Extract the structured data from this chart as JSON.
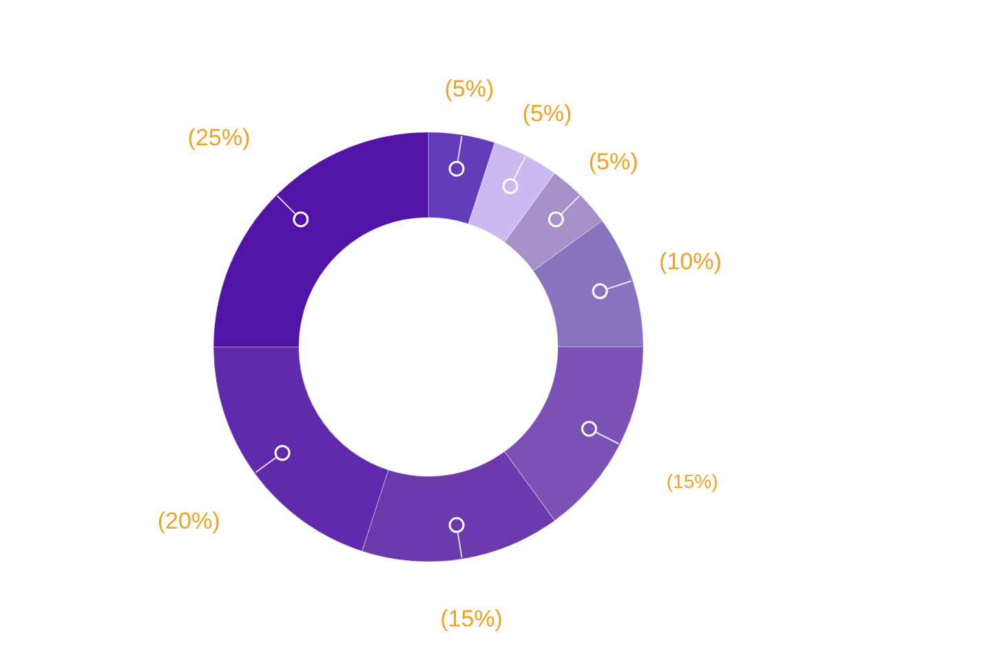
{
  "chart_data": {
    "type": "donut",
    "categories": [
      null,
      null,
      null,
      null,
      null,
      null,
      null,
      null
    ],
    "values": [
      5,
      5,
      5,
      10,
      15,
      15,
      20,
      25
    ],
    "colors": [
      "#643bb9",
      "#cbb9f0",
      "#a690c8",
      "#8874bd",
      "#7c51b5",
      "#6a3aac",
      "#5f2aab",
      "#5114a6"
    ],
    "value_labels": [
      "(5%)",
      "(5%)",
      "(5%)",
      "(10%)",
      "(15%)",
      "(15%)",
      "(20%)",
      "(25%)"
    ]
  }
}
